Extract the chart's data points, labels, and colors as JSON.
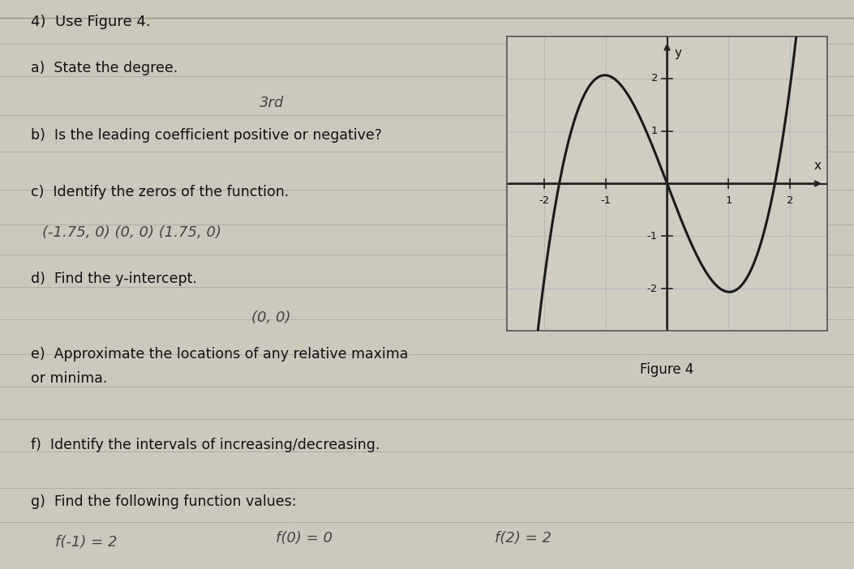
{
  "title": "4)  Use Figure 4.",
  "q_a": "a)  State the degree.",
  "q_b": "b)  Is the leading coefficient positive or negative?",
  "q_c": "c)  Identify the zeros of the function.",
  "q_d": "d)  Find the y-intercept.",
  "q_e": "e)  Approximate the locations of any relative maxima",
  "q_e2": "or minima.",
  "q_f": "f)  Identify the intervals of increasing/decreasing.",
  "q_g": "g)  Find the following function values:",
  "ans_a": "3rd",
  "ans_c": "(-1.75, 0) (0, 0) (1.75, 0)",
  "ans_d": "(0, 0)",
  "ans_g1": "f(-1) = 2",
  "ans_g2": "f(0) = 0",
  "ans_g3": "f(2) = 2",
  "figure_caption": "Figure 4",
  "graph_xlim": [
    -2.6,
    2.6
  ],
  "graph_ylim": [
    -2.8,
    2.8
  ],
  "graph_xticks": [
    -2,
    -1,
    1,
    2
  ],
  "graph_yticks": [
    -2,
    -1,
    1,
    2
  ],
  "curve_color": "#1a1a1a",
  "axis_color": "#222222",
  "grid_color": "#b8b8b8",
  "paper_color": "#ccc8bc",
  "graph_bg": "#d0ccbf",
  "graph_border": "#555555",
  "text_color": "#111111",
  "hw_color": "#444444",
  "line_color": "#aaa89a"
}
